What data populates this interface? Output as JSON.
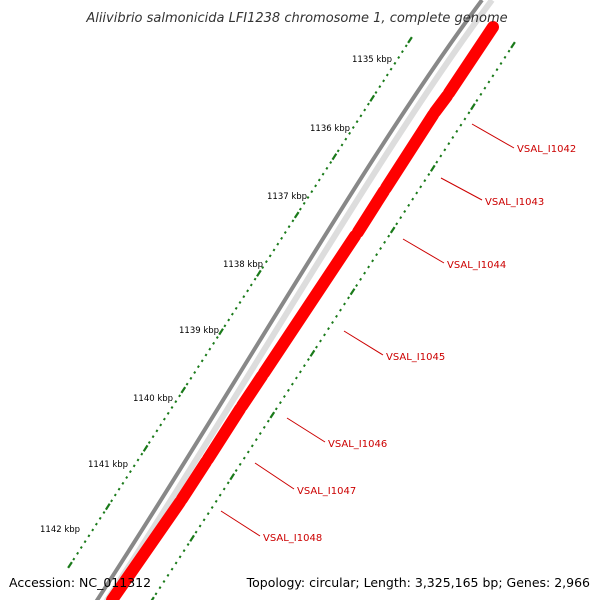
{
  "title": "Aliivibrio salmonicida LFI1238 chromosome 1, complete genome",
  "footer": {
    "accession": "Accession: NC_011312",
    "summary": "Topology: circular; Length: 3,325,165 bp; Genes: 2,966"
  },
  "scale_labels": [
    "1135 kbp",
    "1136 kbp",
    "1137 kbp",
    "1138 kbp",
    "1139 kbp",
    "1140 kbp",
    "1141 kbp",
    "1142 kbp"
  ],
  "genes": [
    "VSAL_I1042",
    "VSAL_I1043",
    "VSAL_I1044",
    "VSAL_I1045",
    "VSAL_I1046",
    "VSAL_I1047",
    "VSAL_I1048"
  ],
  "colors": {
    "backbone": "#888888",
    "gene": "#ff0000",
    "gene_label": "#cc0000",
    "ticks": "#1a7a1a",
    "text": "#000000",
    "title": "#333333"
  }
}
